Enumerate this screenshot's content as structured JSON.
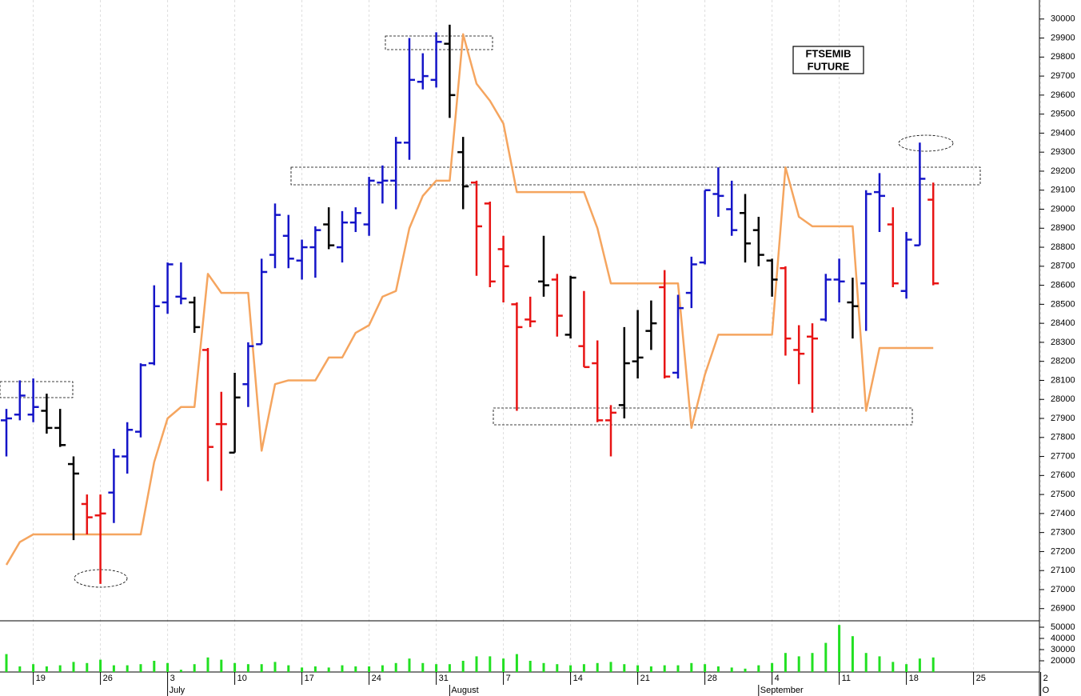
{
  "chart_data": {
    "type": "ohlc",
    "ylim": [
      26840,
      30100
    ],
    "yticks": [
      26900,
      27000,
      27100,
      27200,
      27300,
      27400,
      27500,
      27600,
      27700,
      27800,
      27900,
      28000,
      28100,
      28200,
      28300,
      28400,
      28500,
      28600,
      28700,
      28800,
      28900,
      29000,
      29100,
      29200,
      29300,
      29400,
      29500,
      29600,
      29700,
      29800,
      29900,
      30000
    ],
    "label_box": [
      "FTSEMIB",
      "FUTURE"
    ],
    "categories": [
      null,
      null,
      "19",
      null,
      null,
      null,
      null,
      "26",
      null,
      null,
      null,
      null,
      "3",
      null,
      null,
      null,
      null,
      "10",
      null,
      null,
      null,
      null,
      "17",
      null,
      null,
      null,
      null,
      "24",
      null,
      null,
      null,
      null,
      "31",
      null,
      null,
      null,
      null,
      "7",
      null,
      null,
      null,
      null,
      "14",
      null,
      null,
      null,
      null,
      "21",
      null,
      null,
      null,
      null,
      "28",
      null,
      null,
      null,
      null,
      "4",
      null,
      null,
      null,
      null,
      "11",
      null,
      null,
      null,
      null,
      "18",
      null,
      null,
      null,
      null,
      "25",
      null,
      null,
      null,
      null,
      "2"
    ],
    "category_months": [
      null,
      null,
      null,
      null,
      null,
      null,
      null,
      null,
      null,
      null,
      null,
      null,
      "July",
      null,
      null,
      null,
      null,
      null,
      null,
      null,
      null,
      null,
      null,
      null,
      null,
      null,
      null,
      null,
      null,
      null,
      null,
      null,
      null,
      "August",
      null,
      null,
      null,
      null,
      null,
      null,
      null,
      null,
      null,
      null,
      null,
      null,
      null,
      null,
      null,
      null,
      null,
      null,
      null,
      null,
      null,
      null,
      "September",
      null,
      null,
      null,
      null,
      null,
      null,
      null,
      null,
      null,
      null,
      null,
      null,
      null,
      null,
      null,
      null,
      null,
      null,
      null,
      null,
      "O"
    ],
    "ohlc": {
      "open": [
        27890,
        27920,
        27920,
        27940,
        27850,
        27660,
        27450,
        27390,
        27510,
        27700,
        27830,
        28190,
        28510,
        28540,
        28510,
        28260,
        27870,
        27720,
        28080,
        28290,
        28760,
        28860,
        28730,
        28800,
        28920,
        28800,
        28930,
        28920,
        29140,
        29150,
        29350,
        29670,
        29680,
        29870,
        29300,
        29140,
        29030,
        28790,
        28500,
        28420,
        28620,
        28630,
        28340,
        28280,
        28190,
        27890,
        27970,
        28200,
        28360,
        28590,
        28140,
        28560,
        28720,
        29080,
        29000,
        28980,
        28890,
        28730,
        28690,
        28260,
        28330,
        28420,
        28630,
        28510,
        28610,
        29090,
        28920,
        28570,
        28810,
        29050,
        null,
        null,
        null,
        null,
        null,
        null,
        null,
        null
      ],
      "high": [
        27950,
        28100,
        28110,
        28030,
        27950,
        27700,
        27500,
        27500,
        27740,
        27880,
        28190,
        28600,
        28720,
        28720,
        28540,
        28270,
        28040,
        28140,
        28300,
        28740,
        29030,
        28970,
        28840,
        28910,
        29010,
        28990,
        29010,
        29170,
        29230,
        29380,
        29900,
        29820,
        29930,
        29970,
        29380,
        29150,
        29040,
        28860,
        28510,
        28540,
        28860,
        28660,
        28650,
        28570,
        28310,
        27970,
        28380,
        28470,
        28520,
        28680,
        28550,
        28750,
        29100,
        29220,
        29150,
        29080,
        28960,
        28740,
        28700,
        28390,
        28400,
        28660,
        28740,
        28640,
        29100,
        29190,
        29010,
        28880,
        29350,
        29140,
        null,
        null,
        null,
        null,
        null,
        null,
        null,
        null
      ],
      "low": [
        27700,
        27890,
        27880,
        27820,
        27750,
        27260,
        27290,
        27030,
        27350,
        27610,
        27800,
        28180,
        28450,
        28500,
        28350,
        27570,
        27520,
        27720,
        27960,
        28290,
        28690,
        28690,
        28630,
        28640,
        28790,
        28720,
        28880,
        28860,
        29030,
        29000,
        29260,
        29630,
        29640,
        29480,
        29000,
        28650,
        28590,
        28510,
        27940,
        28380,
        28540,
        28330,
        28320,
        28170,
        27880,
        27700,
        27900,
        28110,
        28260,
        28110,
        28110,
        28480,
        28710,
        28960,
        28860,
        28720,
        28700,
        28540,
        28230,
        28080,
        27930,
        28410,
        28510,
        28320,
        28360,
        28880,
        28590,
        28530,
        28810,
        28600,
        null,
        null,
        null,
        null,
        null,
        null,
        null,
        null
      ],
      "close": [
        27900,
        28020,
        27960,
        27850,
        27760,
        27610,
        27380,
        27400,
        27700,
        27840,
        28180,
        28490,
        28710,
        28530,
        28380,
        27750,
        27870,
        28010,
        28280,
        28670,
        28970,
        28740,
        28800,
        28890,
        28810,
        28930,
        28980,
        29150,
        29150,
        29350,
        29680,
        29700,
        29880,
        29600,
        29120,
        28910,
        28620,
        28700,
        28380,
        28410,
        28600,
        28440,
        28640,
        28170,
        27890,
        27930,
        28190,
        28220,
        28400,
        28120,
        28480,
        28710,
        29100,
        29070,
        28890,
        28820,
        28760,
        28630,
        28320,
        28240,
        28320,
        28630,
        28620,
        28490,
        29080,
        29070,
        28610,
        28840,
        29160,
        28610,
        null,
        null,
        null,
        null,
        null,
        null,
        null,
        null
      ],
      "colors": [
        "#1414c8",
        "#1414c8",
        "#1414c8",
        "#000000",
        "#000000",
        "#000000",
        "#e81414",
        "#e81414",
        "#1414c8",
        "#1414c8",
        "#1414c8",
        "#1414c8",
        "#1414c8",
        "#1414c8",
        "#000000",
        "#e81414",
        "#e81414",
        "#000000",
        "#1414c8",
        "#1414c8",
        "#1414c8",
        "#1414c8",
        "#1414c8",
        "#1414c8",
        "#000000",
        "#1414c8",
        "#1414c8",
        "#1414c8",
        "#1414c8",
        "#1414c8",
        "#1414c8",
        "#1414c8",
        "#1414c8",
        "#000000",
        "#000000",
        "#e81414",
        "#e81414",
        "#e81414",
        "#e81414",
        "#e81414",
        "#000000",
        "#e81414",
        "#000000",
        "#e81414",
        "#e81414",
        "#e81414",
        "#000000",
        "#000000",
        "#000000",
        "#e81414",
        "#1414c8",
        "#1414c8",
        "#1414c8",
        "#1414c8",
        "#1414c8",
        "#000000",
        "#000000",
        "#000000",
        "#e81414",
        "#e81414",
        "#e81414",
        "#1414c8",
        "#1414c8",
        "#000000",
        "#1414c8",
        "#1414c8",
        "#e81414",
        "#1414c8",
        "#1414c8",
        "#e81414",
        null,
        null,
        null,
        null,
        null,
        null,
        null,
        null
      ]
    },
    "line": {
      "color": "#f5a55f",
      "values": [
        27130,
        27250,
        27290,
        27290,
        27290,
        27290,
        27290,
        27290,
        27290,
        27290,
        27290,
        27670,
        27900,
        27960,
        27960,
        28660,
        28560,
        28560,
        28560,
        27730,
        28080,
        28100,
        28100,
        28100,
        28220,
        28220,
        28350,
        28390,
        28540,
        28570,
        28900,
        29070,
        29150,
        29150,
        29920,
        29660,
        29570,
        29450,
        29090,
        29090,
        29090,
        29090,
        29090,
        29090,
        28900,
        28610,
        28610,
        28610,
        28610,
        28610,
        28610,
        27850,
        28130,
        28340,
        28340,
        28340,
        28340,
        28340,
        29220,
        28960,
        28910,
        28910,
        28910,
        28910,
        27940,
        28270,
        28270,
        28270,
        28270,
        28270,
        null,
        null,
        null,
        null,
        null,
        null,
        null,
        null
      ]
    },
    "volume": {
      "type": "bar",
      "color": "#22e022",
      "ylim": [
        10000,
        55000
      ],
      "yticks": [
        20000,
        30000,
        40000,
        50000
      ],
      "values": [
        26000,
        15000,
        17000,
        15000,
        16000,
        19000,
        18000,
        21000,
        16000,
        16000,
        17000,
        20000,
        18000,
        12000,
        17000,
        23000,
        21000,
        18000,
        17000,
        17000,
        19000,
        16000,
        14000,
        15000,
        14000,
        16000,
        15000,
        15000,
        16000,
        18000,
        22000,
        18000,
        17000,
        17000,
        20000,
        24000,
        24000,
        22000,
        26000,
        20000,
        18000,
        17000,
        16000,
        17000,
        18000,
        19000,
        17000,
        16000,
        15000,
        16000,
        16000,
        18000,
        17000,
        15000,
        14000,
        13000,
        16000,
        18000,
        27000,
        24000,
        27000,
        36000,
        52000,
        42000,
        27000,
        24000,
        19000,
        17000,
        22000,
        23000,
        null,
        null,
        null,
        null,
        null,
        null,
        null,
        null
      ]
    }
  }
}
